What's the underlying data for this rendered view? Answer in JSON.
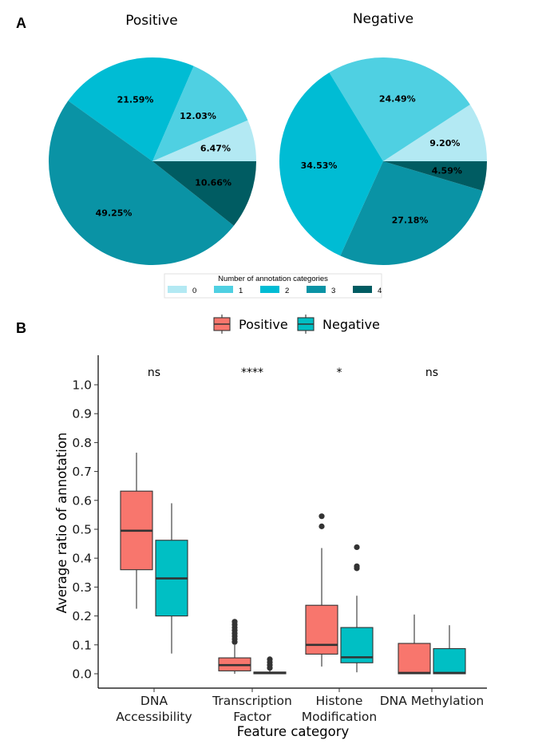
{
  "panel_a": {
    "label": "A",
    "legend_title": "Number of annotation categories",
    "legend_categories": [
      "0",
      "1",
      "2",
      "3",
      "4"
    ],
    "colors": [
      "#b3e9f3",
      "#4fd0e2",
      "#00bcd4",
      "#0a93a5",
      "#005c62"
    ]
  },
  "panel_b": {
    "label": "B",
    "group_colors": {
      "Positive": "#f8766d",
      "Negative": "#00bfc4"
    }
  },
  "chart_data": [
    {
      "type": "pie",
      "title": "Positive",
      "categories": [
        "0",
        "1",
        "2",
        "3",
        "4"
      ],
      "values": [
        6.47,
        12.03,
        21.59,
        49.25,
        10.66
      ],
      "labels": [
        "6.47%",
        "12.03%",
        "21.59%",
        "49.25%",
        "10.66%"
      ]
    },
    {
      "type": "pie",
      "title": "Negative",
      "categories": [
        "0",
        "1",
        "2",
        "3",
        "4"
      ],
      "values": [
        9.2,
        24.49,
        34.53,
        27.18,
        4.59
      ],
      "labels": [
        "9.20%",
        "24.49%",
        "34.53%",
        "27.18%",
        "4.59%"
      ]
    },
    {
      "type": "box",
      "xlabel": "Feature category",
      "ylabel": "Average ratio of annotation",
      "ylim": [
        -0.05,
        1.1
      ],
      "yticks": [
        "0.0",
        "0.1",
        "0.2",
        "0.3",
        "0.4",
        "0.5",
        "0.6",
        "0.7",
        "0.8",
        "0.9",
        "1.0"
      ],
      "legend": [
        "Positive",
        "Negative"
      ],
      "categories": [
        {
          "label_lines": [
            "DNA",
            "Accessibility"
          ],
          "significance": "ns",
          "boxes": [
            {
              "group": "Positive",
              "min": 0.225,
              "q1": 0.36,
              "median": 0.495,
              "q3": 0.632,
              "max": 0.765,
              "outliers": []
            },
            {
              "group": "Negative",
              "min": 0.07,
              "q1": 0.2,
              "median": 0.33,
              "q3": 0.462,
              "max": 0.59,
              "outliers": []
            }
          ]
        },
        {
          "label_lines": [
            "Transcription",
            "Factor"
          ],
          "significance": "****",
          "boxes": [
            {
              "group": "Positive",
              "min": 0.0,
              "q1": 0.01,
              "median": 0.03,
              "q3": 0.055,
              "max": 0.1,
              "outliers": [
                0.11,
                0.12,
                0.13,
                0.14,
                0.15,
                0.16,
                0.17,
                0.18
              ]
            },
            {
              "group": "Negative",
              "min": 0.0,
              "q1": 0.0,
              "median": 0.003,
              "q3": 0.006,
              "max": 0.012,
              "outliers": [
                0.02,
                0.03,
                0.04,
                0.05
              ]
            }
          ]
        },
        {
          "label_lines": [
            "Histone",
            "Modification"
          ],
          "significance": "*",
          "boxes": [
            {
              "group": "Positive",
              "min": 0.025,
              "q1": 0.068,
              "median": 0.1,
              "q3": 0.237,
              "max": 0.435,
              "outliers": [
                0.51,
                0.545
              ]
            },
            {
              "group": "Negative",
              "min": 0.005,
              "q1": 0.038,
              "median": 0.057,
              "q3": 0.16,
              "max": 0.27,
              "outliers": [
                0.365,
                0.372,
                0.438
              ]
            }
          ]
        },
        {
          "label_lines": [
            "DNA Methylation"
          ],
          "significance": "ns",
          "boxes": [
            {
              "group": "Positive",
              "min": 0.0,
              "q1": 0.0,
              "median": 0.003,
              "q3": 0.105,
              "max": 0.205,
              "outliers": []
            },
            {
              "group": "Negative",
              "min": 0.0,
              "q1": 0.0,
              "median": 0.003,
              "q3": 0.087,
              "max": 0.168,
              "outliers": []
            }
          ]
        }
      ]
    }
  ]
}
